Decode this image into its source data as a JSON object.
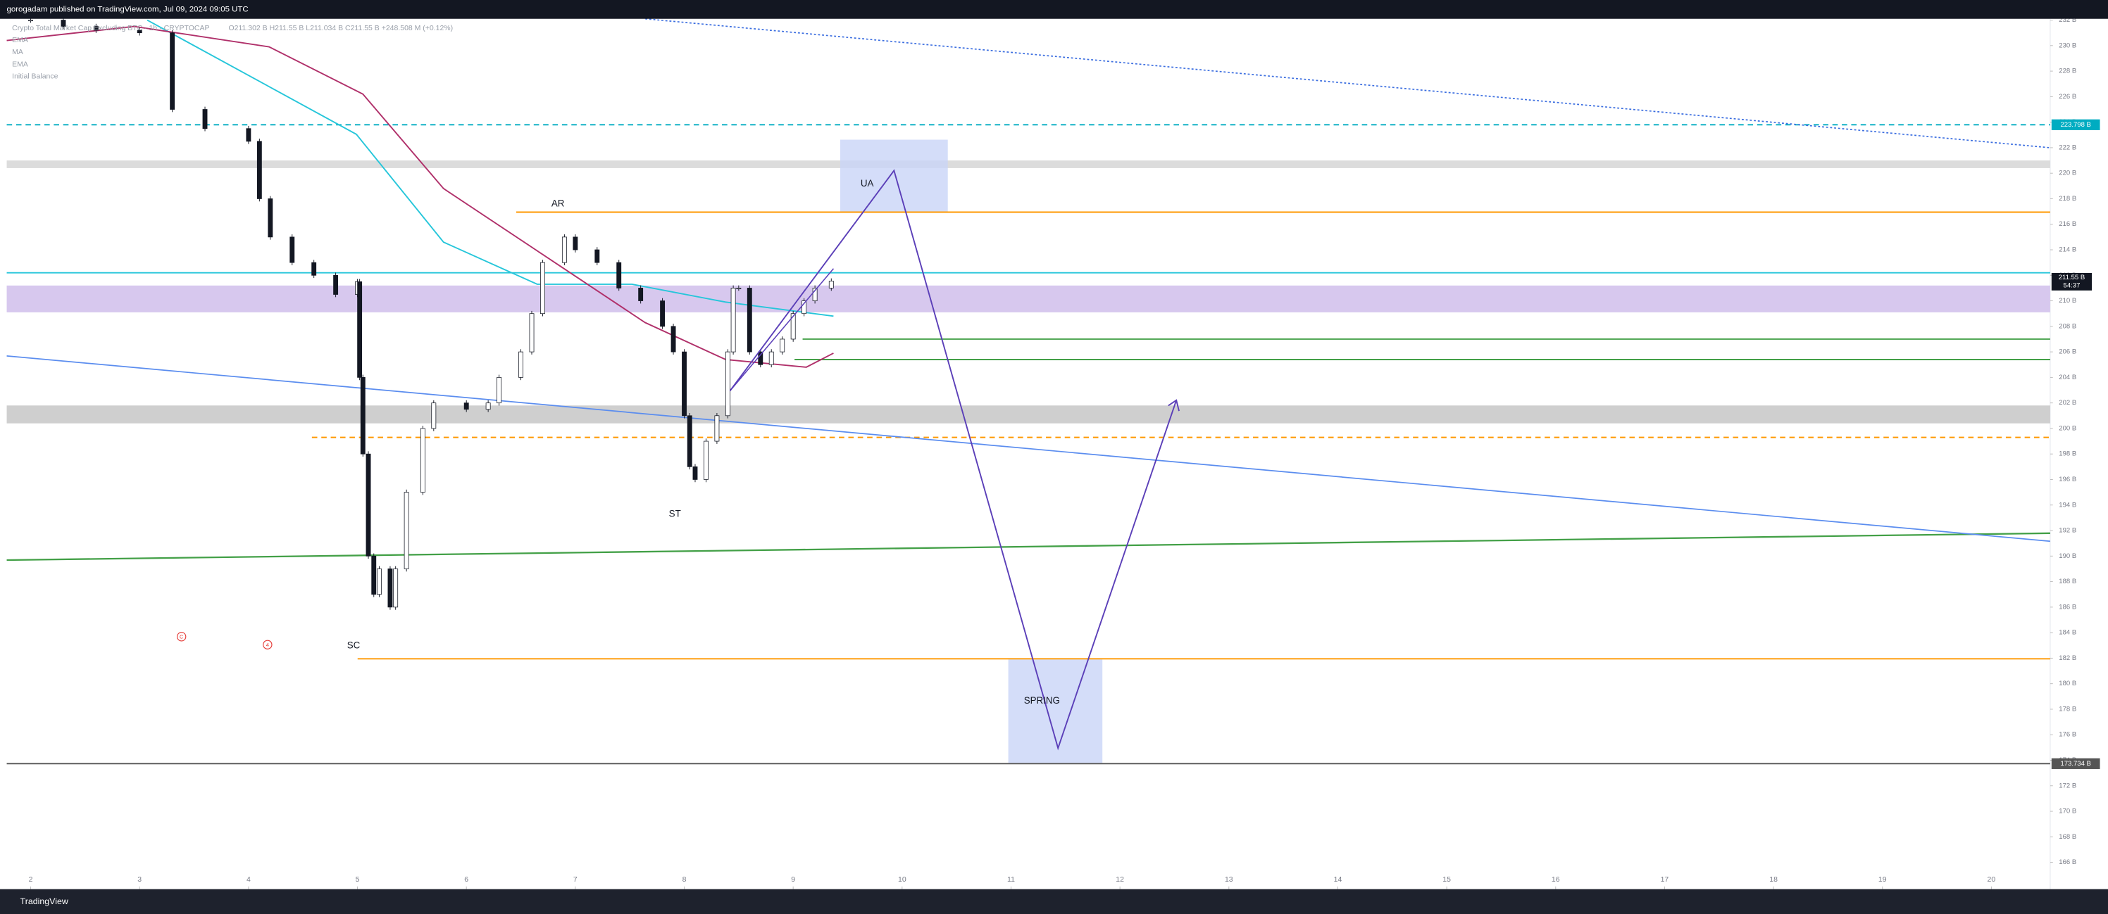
{
  "header": {
    "title": "gorogadam published on TradingView.com, Jul 09, 2024 09:05 UTC"
  },
  "legend": {
    "symbol": "Crypto Total Market Cap Excluding BTC · 1h · CRYPTOCAP",
    "ohlc": "O211.302 B  H211.55 B  L211.034 B  C211.55 B  +248.508 M (+0.12%)",
    "indicators": [
      "EMA",
      "MA",
      "EMA",
      "Initial Balance"
    ]
  },
  "footer": {
    "brand": "TradingView"
  },
  "chart_data": {
    "type": "candlestick",
    "xlim": [
      1.78,
      20.54
    ],
    "ylim": [
      163.9,
      232.1
    ],
    "xticks": [
      2,
      3,
      4,
      5,
      6,
      7,
      8,
      9,
      10,
      11,
      12,
      13,
      14,
      15,
      16,
      17,
      18,
      19,
      20
    ],
    "yticks": [
      {
        "value": 166,
        "label": "166 B"
      },
      {
        "value": 168,
        "label": "168 B"
      },
      {
        "value": 170,
        "label": "170 B"
      },
      {
        "value": 172,
        "label": "172 B"
      },
      {
        "value": 174,
        "label": "174 B"
      },
      {
        "value": 176,
        "label": "176 B"
      },
      {
        "value": 178,
        "label": "178 B"
      },
      {
        "value": 180,
        "label": "180 B"
      },
      {
        "value": 182,
        "label": "182 B"
      },
      {
        "value": 184,
        "label": "184 B"
      },
      {
        "value": 186,
        "label": "186 B"
      },
      {
        "value": 188,
        "label": "188 B"
      },
      {
        "value": 190,
        "label": "190 B"
      },
      {
        "value": 192,
        "label": "192 B"
      },
      {
        "value": 194,
        "label": "194 B"
      },
      {
        "value": 196,
        "label": "196 B"
      },
      {
        "value": 198,
        "label": "198 B"
      },
      {
        "value": 200,
        "label": "200 B"
      },
      {
        "value": 202,
        "label": "202 B"
      },
      {
        "value": 204,
        "label": "204 B"
      },
      {
        "value": 206,
        "label": "206 B"
      },
      {
        "value": 208,
        "label": "208 B"
      },
      {
        "value": 210,
        "label": "210 B"
      },
      {
        "value": 212,
        "label": "212 B"
      },
      {
        "value": 214,
        "label": "214 B"
      },
      {
        "value": 216,
        "label": "216 B"
      },
      {
        "value": 218,
        "label": "218 B"
      },
      {
        "value": 220,
        "label": "220 B"
      },
      {
        "value": 222,
        "label": "222 B"
      },
      {
        "value": 224,
        "label": "224 B"
      },
      {
        "value": 226,
        "label": "226 B"
      },
      {
        "value": 228,
        "label": "228 B"
      },
      {
        "value": 230,
        "label": "230 B"
      },
      {
        "value": 232,
        "label": "232 B"
      }
    ],
    "x": [
      2.0,
      2.3,
      2.6,
      3.0,
      3.3,
      3.6,
      4.0,
      4.1,
      4.2,
      4.4,
      4.6,
      4.8,
      5.0,
      5.02,
      5.05,
      5.1,
      5.15,
      5.2,
      5.3,
      5.35,
      5.45,
      5.6,
      5.7,
      6.0,
      6.2,
      6.3,
      6.5,
      6.6,
      6.7,
      6.9,
      7.0,
      7.2,
      7.4,
      7.6,
      7.8,
      7.9,
      8.0,
      8.05,
      8.1,
      8.2,
      8.3,
      8.4,
      8.45,
      8.5,
      8.6,
      8.7,
      8.8,
      8.9,
      9.0,
      9.1,
      9.2,
      9.35
    ],
    "series": [
      {
        "name": "Close",
        "values": [
          232,
          231.5,
          231.2,
          231,
          225,
          223.5,
          222.5,
          218,
          215,
          213,
          212,
          210.5,
          211.5,
          204,
          198,
          190,
          187,
          189,
          186,
          189,
          195,
          200,
          202,
          201.5,
          202,
          204,
          206,
          209,
          213,
          215,
          214,
          213,
          211,
          210,
          208,
          206,
          201,
          197,
          196,
          199,
          201,
          206,
          211,
          211,
          206,
          205,
          206,
          207,
          209,
          210,
          211,
          211.55
        ]
      },
      {
        "name": "MA",
        "color": "#26c6da",
        "x": [
          3.07,
          4.99,
          5.79,
          6.65,
          7.52,
          8.38,
          9.37
        ],
        "values": [
          232.0,
          223.05,
          214.6,
          211.3,
          211.3,
          209.9,
          208.8
        ]
      },
      {
        "name": "EMA",
        "color": "#b0306a",
        "x": [
          1.78,
          2.95,
          4.19,
          5.05,
          5.79,
          6.9,
          7.64,
          8.38,
          9.12,
          9.37
        ],
        "values": [
          230.4,
          231.5,
          229.9,
          226.2,
          218.8,
          212.5,
          208.3,
          205.4,
          204.8,
          205.9
        ]
      }
    ],
    "levels": [
      {
        "value": 223.798,
        "label": "223.798 B",
        "color": "#00acc1"
      },
      {
        "value": 216.95,
        "color": "#ff9800"
      },
      {
        "value": 212.2,
        "color": "#26c6da"
      },
      {
        "value": 207.0,
        "color": "#43a047"
      },
      {
        "value": 205.4,
        "color": "#43a047"
      },
      {
        "value": 199.3,
        "color": "#ff9800"
      },
      {
        "value": 181.95,
        "color": "#ff9800"
      },
      {
        "value": 173.734,
        "label": "173.734 B",
        "color": "#555555"
      }
    ],
    "zones": [
      {
        "top": 221.0,
        "bottom": 220.4,
        "color": "#dcdcdc"
      },
      {
        "top": 211.2,
        "bottom": 209.1,
        "color": "#d7c8ee"
      },
      {
        "top": 201.8,
        "bottom": 200.4,
        "color": "#cfcfcf"
      }
    ],
    "last_price": {
      "value": 211.55,
      "label": "211.55 B",
      "countdown": "54:37"
    },
    "annotations": [
      "AR",
      "UA",
      "ST",
      "SC",
      "SPRING",
      "C",
      "4"
    ]
  }
}
